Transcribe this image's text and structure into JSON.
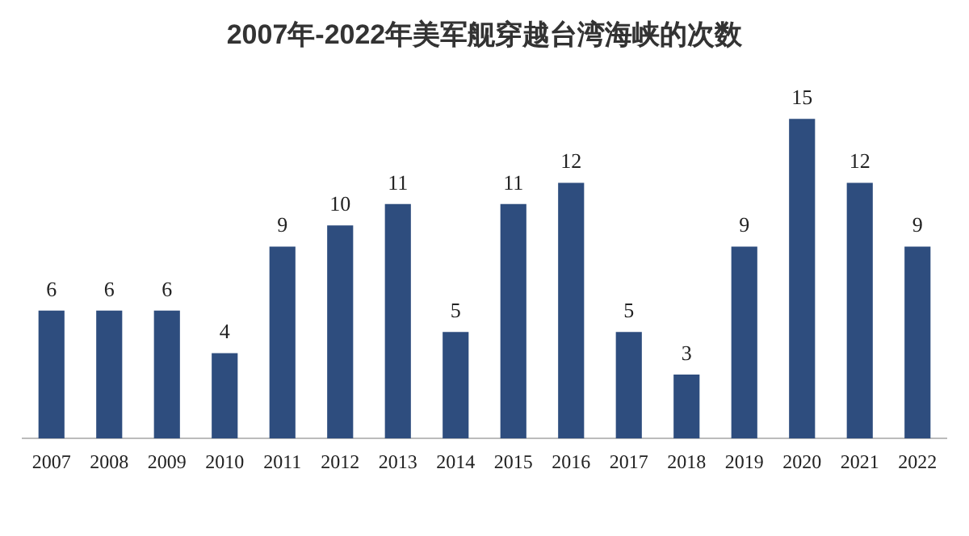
{
  "chart_data": {
    "type": "bar",
    "title": "2007年-2022年美军舰穿越台湾海峡的次数",
    "categories": [
      "2007",
      "2008",
      "2009",
      "2010",
      "2011",
      "2012",
      "2013",
      "2014",
      "2015",
      "2016",
      "2017",
      "2018",
      "2019",
      "2020",
      "2021",
      "2022"
    ],
    "values": [
      6,
      6,
      6,
      4,
      9,
      10,
      11,
      5,
      11,
      12,
      5,
      3,
      9,
      15,
      12,
      9
    ],
    "color": "#2e4d7e",
    "data_labels": true,
    "grid": false,
    "legend": false
  }
}
